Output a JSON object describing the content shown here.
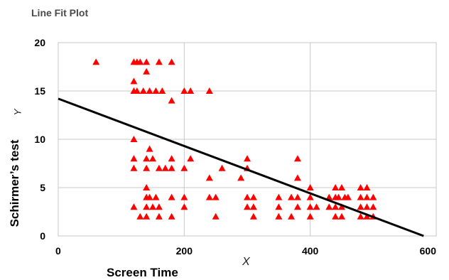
{
  "chart_data": {
    "type": "scatter",
    "title": "Line Fit Plot",
    "xlabel": "Screen Time",
    "xsymbol": "X",
    "ylabel": "Schirmer’s test",
    "ysymbol": "Y",
    "xlim": [
      0,
      600
    ],
    "ylim": [
      0,
      20
    ],
    "xticks": [
      "0",
      "200",
      "400",
      "600"
    ],
    "yticks": [
      "0",
      "5",
      "10",
      "15",
      "20"
    ],
    "grid": true,
    "marker_color": "#ff0000",
    "line_color": "#000000",
    "fit_line": {
      "x": [
        0,
        580
      ],
      "y": [
        14.2,
        0
      ]
    },
    "points": [
      [
        60,
        18
      ],
      [
        120,
        18
      ],
      [
        125,
        18
      ],
      [
        130,
        18
      ],
      [
        140,
        18
      ],
      [
        160,
        18
      ],
      [
        180,
        18
      ],
      [
        120,
        16
      ],
      [
        140,
        17
      ],
      [
        120,
        15
      ],
      [
        125,
        15
      ],
      [
        135,
        15
      ],
      [
        145,
        15
      ],
      [
        155,
        15
      ],
      [
        165,
        15
      ],
      [
        200,
        15
      ],
      [
        210,
        15
      ],
      [
        240,
        15
      ],
      [
        180,
        14
      ],
      [
        120,
        10
      ],
      [
        145,
        9
      ],
      [
        120,
        8
      ],
      [
        140,
        8
      ],
      [
        150,
        8
      ],
      [
        180,
        8
      ],
      [
        210,
        8
      ],
      [
        300,
        8
      ],
      [
        380,
        8
      ],
      [
        120,
        7
      ],
      [
        140,
        7
      ],
      [
        160,
        7
      ],
      [
        170,
        7
      ],
      [
        180,
        7
      ],
      [
        200,
        7
      ],
      [
        260,
        7
      ],
      [
        300,
        7
      ],
      [
        240,
        6
      ],
      [
        290,
        6
      ],
      [
        380,
        6
      ],
      [
        140,
        5
      ],
      [
        400,
        5
      ],
      [
        440,
        5
      ],
      [
        450,
        5
      ],
      [
        480,
        5
      ],
      [
        490,
        5
      ],
      [
        140,
        4
      ],
      [
        145,
        4
      ],
      [
        155,
        4
      ],
      [
        180,
        4
      ],
      [
        200,
        4
      ],
      [
        240,
        4
      ],
      [
        250,
        4
      ],
      [
        300,
        4
      ],
      [
        310,
        4
      ],
      [
        350,
        4
      ],
      [
        370,
        4
      ],
      [
        380,
        4
      ],
      [
        400,
        4
      ],
      [
        430,
        4
      ],
      [
        440,
        4
      ],
      [
        445,
        4
      ],
      [
        455,
        4
      ],
      [
        460,
        4
      ],
      [
        480,
        4
      ],
      [
        490,
        4
      ],
      [
        500,
        4
      ],
      [
        120,
        3
      ],
      [
        140,
        3
      ],
      [
        150,
        3
      ],
      [
        160,
        3
      ],
      [
        200,
        3
      ],
      [
        300,
        3
      ],
      [
        310,
        3
      ],
      [
        350,
        3
      ],
      [
        380,
        3
      ],
      [
        400,
        3
      ],
      [
        410,
        3
      ],
      [
        430,
        3
      ],
      [
        440,
        3
      ],
      [
        450,
        3
      ],
      [
        480,
        3
      ],
      [
        490,
        3
      ],
      [
        500,
        3
      ],
      [
        130,
        2
      ],
      [
        140,
        2
      ],
      [
        160,
        2
      ],
      [
        180,
        2
      ],
      [
        250,
        2
      ],
      [
        310,
        2
      ],
      [
        350,
        2
      ],
      [
        370,
        2
      ],
      [
        400,
        2
      ],
      [
        440,
        2
      ],
      [
        450,
        2
      ],
      [
        480,
        2
      ],
      [
        490,
        2
      ],
      [
        500,
        2
      ]
    ]
  }
}
